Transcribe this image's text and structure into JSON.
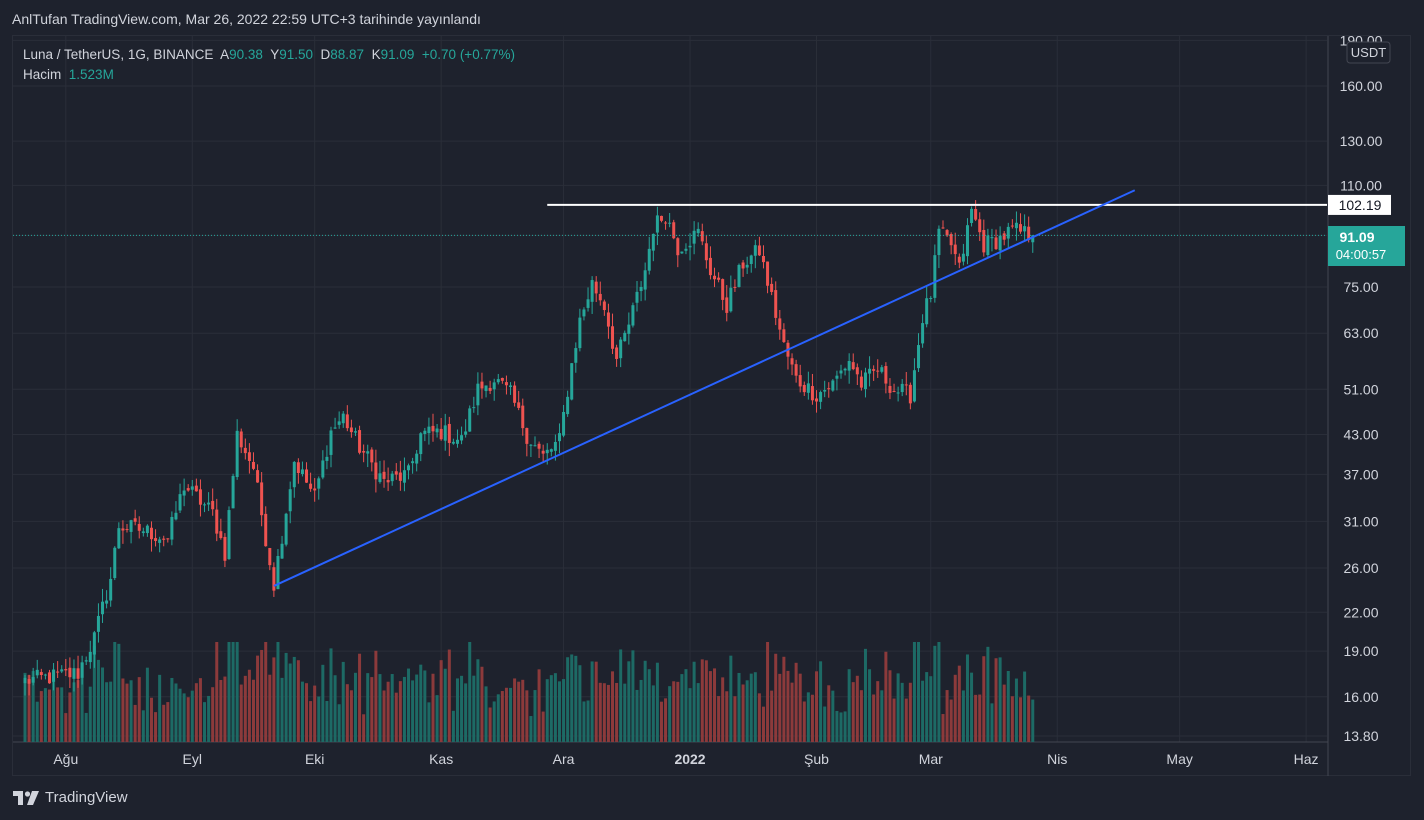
{
  "publisher_line": "AnlTufan TradingView.com, Mar 26, 2022 22:59 UTC+3 tarihinde yayınlandı",
  "legend": {
    "symbol": "Luna / TetherUS, 1G, BINANCE",
    "open_label": "A",
    "open": "90.38",
    "high_label": "Y",
    "high": "91.50",
    "low_label": "D",
    "low": "88.87",
    "close_label": "K",
    "close": "91.09",
    "change": "+0.70 (+0.77%)",
    "volume_label": "Hacim",
    "volume": "1.523M"
  },
  "brand": "TradingView",
  "colors": {
    "background": "#1e222d",
    "grid": "#2a2e39",
    "up": "#26a69a",
    "down": "#ef5350",
    "up_volume": "#1d6a65",
    "down_volume": "#8c3a3b",
    "trendline": "#2962ff",
    "resistance": "#ffffff",
    "price_line": "#26a69a"
  },
  "chart_data": {
    "type": "candlestick",
    "symbol": "LUNA/USDT",
    "interval": "1D",
    "y_scale": "log",
    "y_unit": "USDT",
    "y_ticks": [
      "13.80",
      "16.00",
      "19.00",
      "22.00",
      "26.00",
      "31.00",
      "37.00",
      "43.00",
      "51.00",
      "63.00",
      "75.00",
      "91.09",
      "110.00",
      "130.00",
      "160.00",
      "190.00"
    ],
    "x_ticks": [
      "Ağu",
      "Eyl",
      "Eki",
      "Kas",
      "Ara",
      "2022",
      "Şub",
      "Mar",
      "Nis",
      "May",
      "Haz"
    ],
    "x_range": [
      "2021-07-22",
      "2022-06-30"
    ],
    "ohlc_last": {
      "open": 90.38,
      "high": 91.5,
      "low": 88.87,
      "close": 91.09
    },
    "current_price": "91.09",
    "countdown": "04:00:57",
    "resistance_label": "102.19",
    "resistance_value": 102.19,
    "resistance_from": "2021-11-27",
    "trendline": {
      "from": {
        "date": "2021-09-21",
        "value": 24.3
      },
      "to": {
        "date": "2022-04-20",
        "value": 108.0
      }
    },
    "price_path": [
      {
        "date": "2021-07-22",
        "price": 17.0
      },
      {
        "date": "2021-08-04",
        "price": 17.5
      },
      {
        "date": "2021-08-08",
        "price": 20.0
      },
      {
        "date": "2021-08-12",
        "price": 25.0
      },
      {
        "date": "2021-08-14",
        "price": 30.5
      },
      {
        "date": "2021-08-20",
        "price": 30.0
      },
      {
        "date": "2021-08-26",
        "price": 29.0
      },
      {
        "date": "2021-08-30",
        "price": 35.5
      },
      {
        "date": "2021-09-06",
        "price": 32.0
      },
      {
        "date": "2021-09-09",
        "price": 27.5
      },
      {
        "date": "2021-09-12",
        "price": 43.0
      },
      {
        "date": "2021-09-16",
        "price": 38.0
      },
      {
        "date": "2021-09-21",
        "price": 24.5
      },
      {
        "date": "2021-09-26",
        "price": 39.0
      },
      {
        "date": "2021-10-01",
        "price": 34.0
      },
      {
        "date": "2021-10-05",
        "price": 43.5
      },
      {
        "date": "2021-10-08",
        "price": 46.0
      },
      {
        "date": "2021-10-12",
        "price": 41.0
      },
      {
        "date": "2021-10-18",
        "price": 36.0
      },
      {
        "date": "2021-10-24",
        "price": 37.0
      },
      {
        "date": "2021-10-27",
        "price": 43.0
      },
      {
        "date": "2021-11-01",
        "price": 43.5
      },
      {
        "date": "2021-11-06",
        "price": 42.0
      },
      {
        "date": "2021-11-10",
        "price": 51.0
      },
      {
        "date": "2021-11-14",
        "price": 53.0
      },
      {
        "date": "2021-11-18",
        "price": 50.0
      },
      {
        "date": "2021-11-22",
        "price": 43.0
      },
      {
        "date": "2021-11-26",
        "price": 39.5
      },
      {
        "date": "2021-11-30",
        "price": 42.0
      },
      {
        "date": "2021-12-03",
        "price": 56.0
      },
      {
        "date": "2021-12-05",
        "price": 66.0
      },
      {
        "date": "2021-12-08",
        "price": 76.0
      },
      {
        "date": "2021-12-11",
        "price": 70.0
      },
      {
        "date": "2021-12-14",
        "price": 57.0
      },
      {
        "date": "2021-12-17",
        "price": 65.0
      },
      {
        "date": "2021-12-21",
        "price": 80.0
      },
      {
        "date": "2021-12-23",
        "price": 94.0
      },
      {
        "date": "2021-12-26",
        "price": 99.0
      },
      {
        "date": "2021-12-29",
        "price": 87.0
      },
      {
        "date": "2022-01-03",
        "price": 92.0
      },
      {
        "date": "2022-01-06",
        "price": 80.0
      },
      {
        "date": "2022-01-10",
        "price": 70.0
      },
      {
        "date": "2022-01-14",
        "price": 82.0
      },
      {
        "date": "2022-01-18",
        "price": 86.0
      },
      {
        "date": "2022-01-21",
        "price": 72.0
      },
      {
        "date": "2022-01-24",
        "price": 60.0
      },
      {
        "date": "2022-01-27",
        "price": 53.0
      },
      {
        "date": "2022-02-01",
        "price": 50.0
      },
      {
        "date": "2022-02-05",
        "price": 52.0
      },
      {
        "date": "2022-02-09",
        "price": 57.0
      },
      {
        "date": "2022-02-12",
        "price": 52.0
      },
      {
        "date": "2022-02-16",
        "price": 55.0
      },
      {
        "date": "2022-02-20",
        "price": 51.0
      },
      {
        "date": "2022-02-24",
        "price": 50.0
      },
      {
        "date": "2022-02-27",
        "price": 67.0
      },
      {
        "date": "2022-03-01",
        "price": 73.0
      },
      {
        "date": "2022-03-03",
        "price": 92.0
      },
      {
        "date": "2022-03-06",
        "price": 88.0
      },
      {
        "date": "2022-03-08",
        "price": 80.0
      },
      {
        "date": "2022-03-11",
        "price": 100.0
      },
      {
        "date": "2022-03-14",
        "price": 88.0
      },
      {
        "date": "2022-03-18",
        "price": 90.0
      },
      {
        "date": "2022-03-21",
        "price": 93.0
      },
      {
        "date": "2022-03-26",
        "price": 91.09
      }
    ]
  }
}
